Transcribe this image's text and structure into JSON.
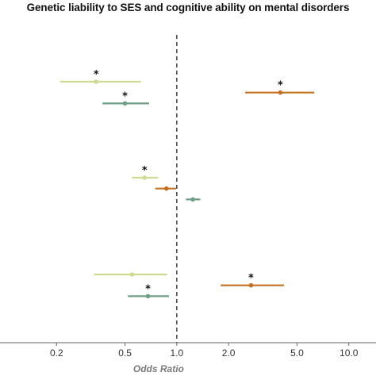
{
  "chart_data": {
    "type": "scatter",
    "title": "Genetic liability to SES and cognitive ability on mental disorders",
    "xlabel": "Odds Ratio",
    "ylabel": "",
    "x_scale": "log",
    "xlim": [
      0.1,
      13.5
    ],
    "x_ticks": [
      0.2,
      0.5,
      1.0,
      2.0,
      5.0,
      10.0
    ],
    "x_tick_labels": [
      "0.2",
      "0.5",
      "1.0",
      "2.0",
      "5.0",
      "10.0"
    ],
    "reference_line": 1.0,
    "grid": false,
    "legend": "none",
    "colors": {
      "light_green": "#cfd98f",
      "teal_green": "#6f9e85",
      "orange": "#c4701f",
      "axis": "#555555"
    },
    "groups": [
      {
        "rows": [
          {
            "color": "light_green",
            "or": 0.34,
            "lo": 0.21,
            "hi": 0.62,
            "significant": true
          },
          {
            "color": "orange",
            "or": 4.0,
            "lo": 2.5,
            "hi": 6.3,
            "significant": true
          },
          {
            "color": "teal_green",
            "or": 0.5,
            "lo": 0.37,
            "hi": 0.69,
            "significant": true
          }
        ]
      },
      {
        "rows": [
          {
            "color": "light_green",
            "or": 0.65,
            "lo": 0.55,
            "hi": 0.78,
            "significant": true
          },
          {
            "color": "orange",
            "or": 0.87,
            "lo": 0.75,
            "hi": 0.99,
            "significant": false
          },
          {
            "color": "teal_green",
            "or": 1.24,
            "lo": 1.13,
            "hi": 1.37,
            "significant": false
          }
        ]
      },
      {
        "rows": [
          {
            "color": "light_green",
            "or": 0.55,
            "lo": 0.33,
            "hi": 0.88,
            "significant": false
          },
          {
            "color": "orange",
            "or": 2.7,
            "lo": 1.8,
            "hi": 4.2,
            "significant": true
          },
          {
            "color": "teal_green",
            "or": 0.68,
            "lo": 0.52,
            "hi": 0.9,
            "significant": true
          }
        ]
      }
    ]
  }
}
